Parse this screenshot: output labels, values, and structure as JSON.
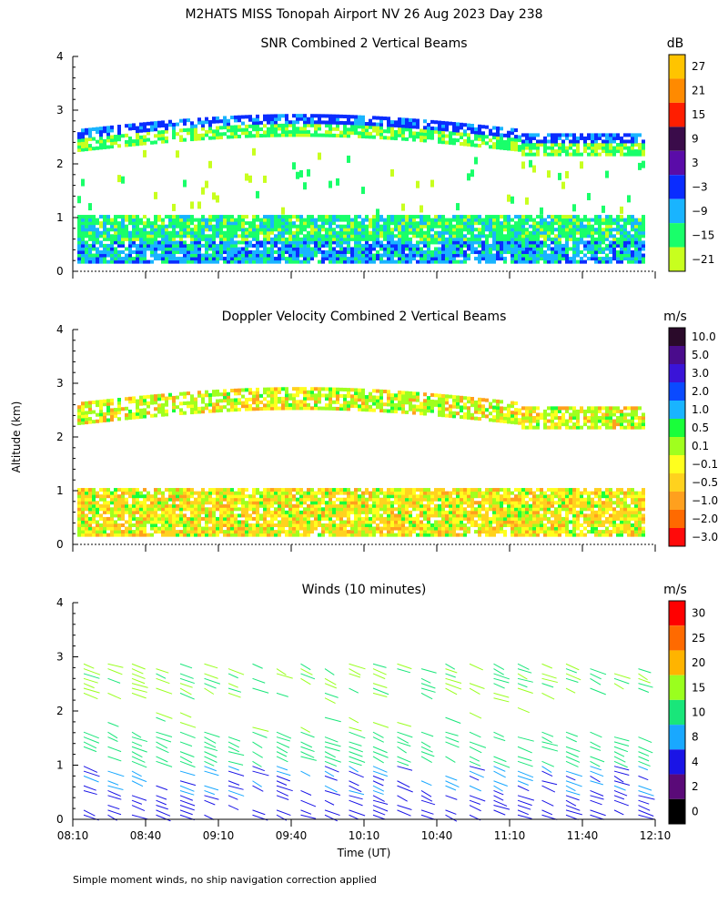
{
  "page": {
    "title": "M2HATS MISS Tonopah Airport NV  26 Aug 2023 Day 238",
    "footnote": "Simple moment winds, no ship navigation correction applied"
  },
  "chart_data": [
    {
      "type": "heatmap",
      "title": "SNR Combined 2 Vertical Beams",
      "xlabel": "",
      "ylabel": "",
      "x_range_minutes": [
        0,
        240
      ],
      "ylim": [
        0,
        4
      ],
      "y_ticks": [
        "0",
        "1",
        "2",
        "3",
        "4"
      ],
      "colorbar": {
        "unit": "dB",
        "labels": [
          "27",
          "21",
          "15",
          "9",
          "3",
          "−3",
          "−9",
          "−15",
          "−21"
        ],
        "colors": [
          "#ffc400",
          "#ff8a00",
          "#ff1e00",
          "#3a0c4a",
          "#5a0ca8",
          "#0a2cff",
          "#19b4ff",
          "#19ff6a",
          "#c8ff1e"
        ]
      }
    },
    {
      "type": "heatmap",
      "title": "Doppler Velocity Combined 2 Vertical Beams",
      "xlabel": "",
      "ylabel": "Altitude (km)",
      "x_range_minutes": [
        0,
        240
      ],
      "ylim": [
        0,
        4
      ],
      "y_ticks": [
        "0",
        "1",
        "2",
        "3",
        "4"
      ],
      "colorbar": {
        "unit": "m/s",
        "labels": [
          "10.0",
          "5.0",
          "3.0",
          "2.0",
          "1.0",
          "0.5",
          "0.1",
          "−0.1",
          "−0.5",
          "−1.0",
          "−2.0",
          "−3.0"
        ],
        "colors": [
          "#2a0a2a",
          "#4a0c8c",
          "#3a14d8",
          "#0a4aff",
          "#19b4ff",
          "#19ff3a",
          "#a0ff1e",
          "#ffff1e",
          "#ffd21e",
          "#ffa01e",
          "#ff6a00",
          "#ff0a0a"
        ]
      }
    },
    {
      "type": "scatter",
      "title": "Winds (10 minutes)",
      "xlabel": "Time (UT)",
      "ylabel": "",
      "x_ticks": [
        "08:10",
        "08:40",
        "09:10",
        "09:40",
        "10:10",
        "10:40",
        "11:10",
        "11:40",
        "12:10"
      ],
      "ylim": [
        0,
        4
      ],
      "y_ticks": [
        "0",
        "1",
        "2",
        "3",
        "4"
      ],
      "colorbar": {
        "unit": "m/s",
        "labels": [
          "30",
          "25",
          "20",
          "15",
          "10",
          "8",
          "4",
          "2",
          "0"
        ],
        "colors": [
          "#ff0000",
          "#ff6a00",
          "#ffb400",
          "#9aff1e",
          "#19e67a",
          "#19a8ff",
          "#1a14e6",
          "#5a0a78",
          "#000000"
        ]
      }
    }
  ]
}
